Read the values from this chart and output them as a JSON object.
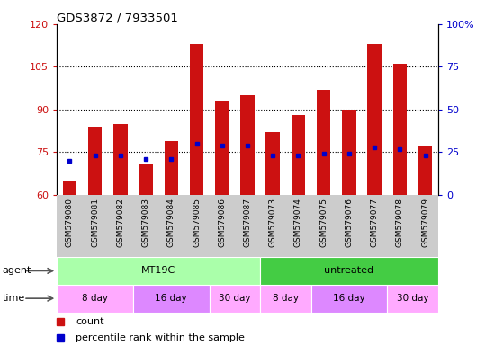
{
  "title": "GDS3872 / 7933501",
  "samples": [
    "GSM579080",
    "GSM579081",
    "GSM579082",
    "GSM579083",
    "GSM579084",
    "GSM579085",
    "GSM579086",
    "GSM579087",
    "GSM579073",
    "GSM579074",
    "GSM579075",
    "GSM579076",
    "GSM579077",
    "GSM579078",
    "GSM579079"
  ],
  "count_values": [
    65,
    84,
    85,
    71,
    79,
    113,
    93,
    95,
    82,
    88,
    97,
    90,
    113,
    106,
    77
  ],
  "percentile_values": [
    20,
    23,
    23,
    21,
    21,
    30,
    29,
    29,
    23,
    23,
    24,
    24,
    28,
    27,
    23
  ],
  "ylim_left": [
    60,
    120
  ],
  "ylim_right": [
    0,
    100
  ],
  "yticks_left": [
    60,
    75,
    90,
    105,
    120
  ],
  "yticks_right": [
    0,
    25,
    50,
    75,
    100
  ],
  "bar_color": "#cc1111",
  "dot_color": "#0000cc",
  "bg_xtick": "#cccccc",
  "agent_groups": [
    {
      "label": "MT19C",
      "start": 0,
      "end": 8,
      "color": "#aaffaa"
    },
    {
      "label": "untreated",
      "start": 8,
      "end": 15,
      "color": "#44cc44"
    }
  ],
  "time_groups": [
    {
      "label": "8 day",
      "start": 0,
      "end": 3,
      "color": "#ffaaff"
    },
    {
      "label": "16 day",
      "start": 3,
      "end": 6,
      "color": "#dd88ff"
    },
    {
      "label": "30 day",
      "start": 6,
      "end": 8,
      "color": "#ffaaff"
    },
    {
      "label": "8 day",
      "start": 8,
      "end": 10,
      "color": "#ffaaff"
    },
    {
      "label": "16 day",
      "start": 10,
      "end": 13,
      "color": "#dd88ff"
    },
    {
      "label": "30 day",
      "start": 13,
      "end": 15,
      "color": "#ffaaff"
    }
  ],
  "legend_items": [
    {
      "label": "count",
      "color": "#cc1111"
    },
    {
      "label": "percentile rank within the sample",
      "color": "#0000cc"
    }
  ],
  "gridline_vals": [
    75,
    90,
    105
  ]
}
